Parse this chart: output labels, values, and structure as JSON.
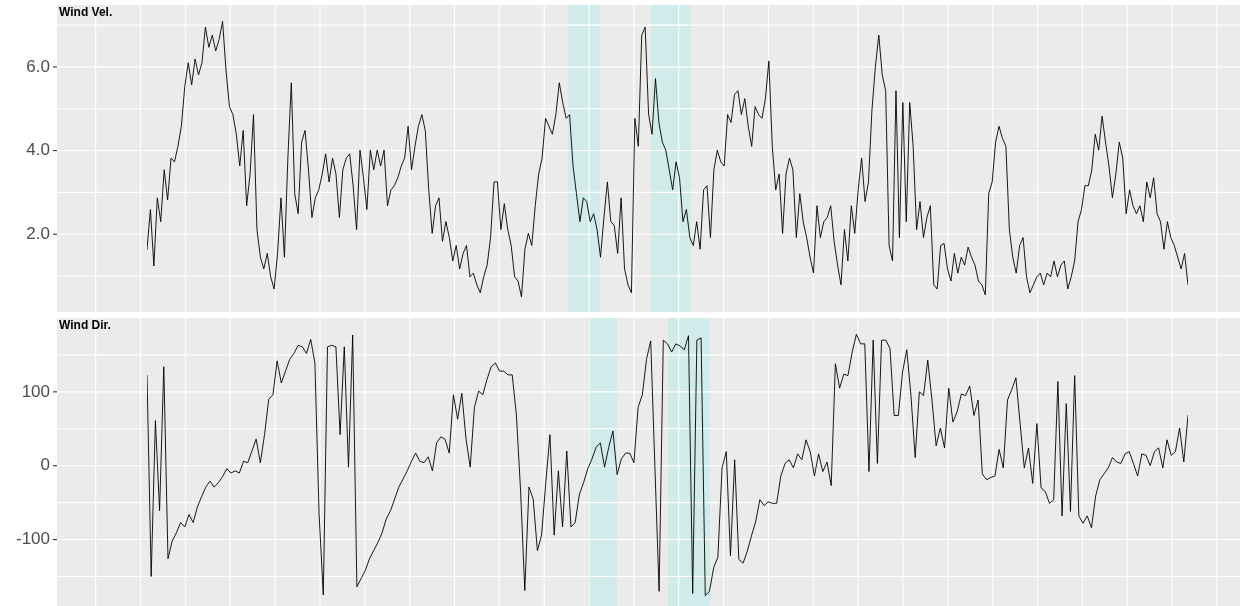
{
  "chart_data": [
    {
      "type": "line",
      "title": "Wind Vel.",
      "grid": true,
      "legend": false,
      "tick_labels": "y",
      "marker": "none",
      "line_style": "solid",
      "ylim": [
        0.14,
        7.48
      ],
      "yticks": [
        {
          "value": 1,
          "label": null
        },
        {
          "value": 2,
          "label": "2.0"
        },
        {
          "value": 3,
          "label": null
        },
        {
          "value": 4,
          "label": "4.0"
        },
        {
          "value": 5,
          "label": null
        },
        {
          "value": 6,
          "label": "6.0"
        },
        {
          "value": 7,
          "label": null
        }
      ],
      "categories": [
        null,
        null,
        null,
        null,
        null,
        null,
        null,
        null,
        null,
        null,
        null,
        null,
        null,
        null,
        null,
        null,
        null,
        null,
        null,
        null,
        null,
        null,
        null,
        null,
        null,
        null,
        null,
        null,
        null,
        null,
        null,
        null,
        null,
        null,
        null,
        null,
        null,
        null,
        null,
        null,
        null,
        null,
        null,
        null,
        null,
        null,
        null,
        null,
        null,
        null,
        null,
        null,
        null,
        null,
        null,
        null,
        null,
        null,
        null,
        null,
        null,
        null,
        null,
        null,
        null,
        null,
        null,
        null,
        null,
        null,
        null,
        null,
        null,
        null,
        null,
        null,
        null,
        null,
        null,
        null,
        null,
        null,
        null,
        null,
        null,
        null,
        null,
        null,
        null,
        null,
        null,
        null,
        null,
        null,
        null,
        null,
        null,
        null,
        null,
        null,
        null,
        null,
        null,
        null,
        null,
        null,
        null,
        null,
        null,
        null,
        null,
        null,
        null,
        null,
        null,
        null,
        null,
        null,
        null,
        null,
        null,
        null,
        null,
        null,
        null,
        null,
        null,
        null,
        null,
        null,
        null,
        null,
        null,
        null,
        null,
        null,
        null,
        null,
        null,
        null,
        null,
        null,
        null,
        null,
        null,
        null,
        null,
        null,
        null,
        null,
        null,
        null,
        null,
        null,
        null,
        null,
        null,
        null,
        null,
        null,
        null,
        null,
        null,
        null,
        null,
        null,
        null,
        null,
        null,
        null,
        null,
        null,
        null,
        null,
        null,
        null,
        null,
        null,
        null,
        null,
        null,
        null,
        null,
        null,
        null,
        null,
        null,
        null,
        null,
        null,
        null,
        null,
        null,
        null,
        null,
        null,
        null,
        null,
        null,
        null,
        null,
        null,
        null,
        null,
        null,
        null,
        null,
        null,
        null,
        null,
        null,
        null,
        null,
        null,
        null,
        null,
        null,
        null,
        null,
        null,
        null,
        null,
        null,
        null,
        null,
        null,
        null,
        null,
        null,
        null,
        null,
        null,
        null,
        null,
        null,
        null,
        null,
        null,
        null,
        null,
        null,
        null,
        null,
        null,
        null,
        null,
        null,
        null,
        null,
        null,
        null,
        null,
        null,
        null,
        null,
        null,
        null,
        null,
        null,
        null,
        null,
        null,
        null,
        null,
        null,
        null,
        null,
        null,
        null,
        null,
        null,
        null,
        null,
        null,
        null,
        null,
        null,
        null,
        null,
        null,
        null,
        null,
        null,
        null,
        null,
        null,
        null,
        null,
        null,
        null,
        null,
        null,
        null,
        null,
        null,
        null,
        null,
        null,
        null,
        null,
        null,
        null,
        null,
        null
      ],
      "series": [
        {
          "color": "#000000",
          "values": [
            1.64,
            2.59,
            1.24,
            2.87,
            2.3,
            3.54,
            2.82,
            3.82,
            3.73,
            4.1,
            4.58,
            5.53,
            6.1,
            5.57,
            6.19,
            5.81,
            6.1,
            6.95,
            6.47,
            6.76,
            6.38,
            6.66,
            7.09,
            5.91,
            5.05,
            4.86,
            4.39,
            3.63,
            4.48,
            2.68,
            3.44,
            4.86,
            2.11,
            1.45,
            1.17,
            1.54,
            0.98,
            0.69,
            1.54,
            2.87,
            1.45,
            3.82,
            5.62,
            2.97,
            2.49,
            4.2,
            4.48,
            3.54,
            2.4,
            2.87,
            3.06,
            3.44,
            3.92,
            3.25,
            3.82,
            3.44,
            2.4,
            3.54,
            3.82,
            3.92,
            3.16,
            2.11,
            4.01,
            3.35,
            2.59,
            4.01,
            3.54,
            4.01,
            3.63,
            4.01,
            2.68,
            3.06,
            3.16,
            3.35,
            3.63,
            3.82,
            4.58,
            3.54,
            4.1,
            4.58,
            4.86,
            4.48,
            3.06,
            2.02,
            2.68,
            2.87,
            1.83,
            2.3,
            1.92,
            1.36,
            1.73,
            1.17,
            1.54,
            1.73,
            0.98,
            1.07,
            0.79,
            0.6,
            0.98,
            1.26,
            1.92,
            3.25,
            3.25,
            2.11,
            2.73,
            2.11,
            1.73,
            0.98,
            0.88,
            0.5,
            1.64,
            2.02,
            1.73,
            2.68,
            3.44,
            3.82,
            4.77,
            4.58,
            4.39,
            4.86,
            5.62,
            5.15,
            4.77,
            4.86,
            3.63,
            2.97,
            2.3,
            2.87,
            2.78,
            2.3,
            2.49,
            2.11,
            1.45,
            2.4,
            3.25,
            2.3,
            2.21,
            1.54,
            2.87,
            1.17,
            0.79,
            0.6,
            4.77,
            4.1,
            6.76,
            6.95,
            4.86,
            4.39,
            5.72,
            4.67,
            4.2,
            4.01,
            3.54,
            3.06,
            3.73,
            3.35,
            2.3,
            2.59,
            1.92,
            1.73,
            2.3,
            1.64,
            3.06,
            3.16,
            1.92,
            3.54,
            4.01,
            3.73,
            3.63,
            4.86,
            4.67,
            5.34,
            5.43,
            4.86,
            5.24,
            4.58,
            4.1,
            5.05,
            4.86,
            4.77,
            5.24,
            6.14,
            4.1,
            3.06,
            3.44,
            2.02,
            3.44,
            3.82,
            3.54,
            1.92,
            2.97,
            2.3,
            1.92,
            1.45,
            1.07,
            2.68,
            1.92,
            2.3,
            2.4,
            2.68,
            1.83,
            1.26,
            0.79,
            2.11,
            1.36,
            2.68,
            2.02,
            3.06,
            3.82,
            2.78,
            3.25,
            4.96,
            6.0,
            6.76,
            5.81,
            5.43,
            1.73,
            1.36,
            5.43,
            1.92,
            5.15,
            2.3,
            5.15,
            4.1,
            2.11,
            2.78,
            1.92,
            2.4,
            2.68,
            0.79,
            0.69,
            1.73,
            1.78,
            1.17,
            0.88,
            1.54,
            1.07,
            1.45,
            1.26,
            1.69,
            1.45,
            1.26,
            0.88,
            0.79,
            0.55,
            2.97,
            3.25,
            4.2,
            4.58,
            4.29,
            4.1,
            2.11,
            1.45,
            1.07,
            1.73,
            1.92,
            0.98,
            0.6,
            0.79,
            0.98,
            1.07,
            0.79,
            1.07,
            0.98,
            1.36,
            0.98,
            1.26,
            1.36,
            0.69,
            0.98,
            1.36,
            2.3,
            2.59,
            3.16,
            3.16,
            3.54,
            4.39,
            4.01,
            4.82,
            4.2,
            3.63,
            2.87,
            3.44,
            4.2,
            3.82,
            2.49,
            3.06,
            2.68,
            2.49,
            2.68,
            2.3,
            3.25,
            2.87,
            3.35,
            2.49,
            2.3,
            1.64,
            2.3,
            1.92,
            1.73,
            1.45,
            1.17,
            1.54,
            0.79
          ]
        }
      ]
    },
    {
      "type": "line",
      "title": "Wind Dir.",
      "grid": true,
      "legend": false,
      "tick_labels": "y",
      "marker": "none",
      "line_style": "solid",
      "ylim": [
        -190,
        200
      ],
      "yticks": [
        {
          "value": -150,
          "label": null
        },
        -100,
        {
          "value": -50,
          "label": null
        },
        0,
        {
          "value": 50,
          "label": null
        },
        100,
        {
          "value": 150,
          "label": null
        }
      ],
      "categories": [
        null,
        null,
        null,
        null,
        null,
        null,
        null,
        null,
        null,
        null,
        null,
        null,
        null,
        null,
        null,
        null,
        null,
        null,
        null,
        null,
        null,
        null,
        null,
        null,
        null,
        null,
        null,
        null,
        null,
        null,
        null,
        null,
        null,
        null,
        null,
        null,
        null,
        null,
        null,
        null,
        null,
        null,
        null,
        null,
        null,
        null,
        null,
        null,
        null,
        null,
        null,
        null,
        null,
        null,
        null,
        null,
        null,
        null,
        null,
        null,
        null,
        null,
        null,
        null,
        null,
        null,
        null,
        null,
        null,
        null,
        null,
        null,
        null,
        null,
        null,
        null,
        null,
        null,
        null,
        null,
        null,
        null,
        null,
        null,
        null,
        null,
        null,
        null,
        null,
        null,
        null,
        null,
        null,
        null,
        null,
        null,
        null,
        null,
        null,
        null,
        null,
        null,
        null,
        null,
        null,
        null,
        null,
        null,
        null,
        null,
        null,
        null,
        null,
        null,
        null,
        null,
        null,
        null,
        null,
        null,
        null,
        null,
        null,
        null,
        null,
        null,
        null,
        null,
        null,
        null,
        null,
        null,
        null,
        null,
        null,
        null,
        null,
        null,
        null,
        null,
        null,
        null,
        null,
        null,
        null,
        null,
        null,
        null,
        null,
        null,
        null,
        null,
        null,
        null,
        null,
        null,
        null,
        null,
        null,
        null,
        null,
        null,
        null,
        null,
        null,
        null,
        null,
        null,
        null,
        null,
        null,
        null,
        null,
        null,
        null,
        null,
        null,
        null,
        null,
        null,
        null,
        null,
        null,
        null,
        null,
        null,
        null,
        null,
        null,
        null,
        null,
        null,
        null,
        null,
        null,
        null,
        null,
        null,
        null,
        null,
        null,
        null,
        null,
        null,
        null,
        null,
        null,
        null,
        null,
        null,
        null,
        null,
        null,
        null,
        null,
        null,
        null,
        null,
        null,
        null,
        null,
        null,
        null,
        null,
        null,
        null,
        null,
        null,
        null,
        null,
        null,
        null,
        null,
        null,
        null,
        null,
        null,
        null,
        null,
        null,
        null,
        null,
        null,
        null,
        null,
        null,
        null,
        null,
        null
      ],
      "series": [
        {
          "color": "#000000",
          "values": [
            122,
            -150,
            61,
            -61,
            134,
            -126,
            -102,
            -91,
            -77,
            -83,
            -66,
            -77,
            -56,
            -42,
            -29,
            -21,
            -29,
            -23,
            -15,
            -4,
            -10,
            -7,
            -10,
            6,
            4,
            20,
            36,
            4,
            42,
            90,
            96,
            142,
            112,
            128,
            144,
            152,
            163,
            161,
            152,
            171,
            139,
            -66,
            -175,
            161,
            163,
            161,
            42,
            161,
            -2,
            177,
            -164,
            -153,
            -142,
            -126,
            -115,
            -104,
            -91,
            -72,
            -61,
            -45,
            -29,
            -18,
            -7,
            6,
            17,
            6,
            4,
            12,
            -7,
            31,
            39,
            36,
            17,
            96,
            63,
            98,
            36,
            -2,
            79,
            101,
            96,
            117,
            134,
            139,
            128,
            128,
            123,
            123,
            69,
            -34,
            -169,
            -29,
            -45,
            -115,
            -94,
            -23,
            42,
            -94,
            -7,
            -83,
            20,
            -83,
            -77,
            -39,
            -23,
            -4,
            9,
            25,
            31,
            -2,
            25,
            47,
            -12,
            9,
            17,
            17,
            4,
            79,
            96,
            144,
            169,
            -2,
            -170,
            170,
            165,
            154,
            165,
            162,
            157,
            176,
            -173,
            170,
            173,
            -176,
            -170,
            -138,
            -124,
            -3,
            19,
            -122,
            8,
            -127,
            -132,
            -116,
            -95,
            -76,
            -46,
            -54,
            -49,
            -51,
            -51,
            -14,
            3,
            8,
            -3,
            16,
            8,
            35,
            19,
            -14,
            16,
            -8,
            5,
            -27,
            138,
            105,
            124,
            122,
            154,
            178,
            165,
            165,
            -8,
            170,
            3,
            170,
            170,
            159,
            68,
            68,
            127,
            157,
            95,
            11,
            100,
            95,
            143,
            89,
            27,
            51,
            24,
            105,
            59,
            73,
            97,
            95,
            108,
            68,
            89,
            -11,
            -19,
            -16,
            -14,
            22,
            -3,
            89,
            103,
            119,
            57,
            -3,
            24,
            -24,
            57,
            -30,
            -35,
            -51,
            -46,
            114,
            -68,
            84,
            -62,
            122,
            -68,
            -78,
            -68,
            -84,
            -41,
            -19,
            -11,
            -3,
            11,
            5,
            3,
            16,
            19,
            3,
            -14,
            16,
            14,
            0,
            19,
            24,
            -3,
            35,
            14,
            19,
            51,
            5,
            68
          ]
        }
      ]
    }
  ]
}
